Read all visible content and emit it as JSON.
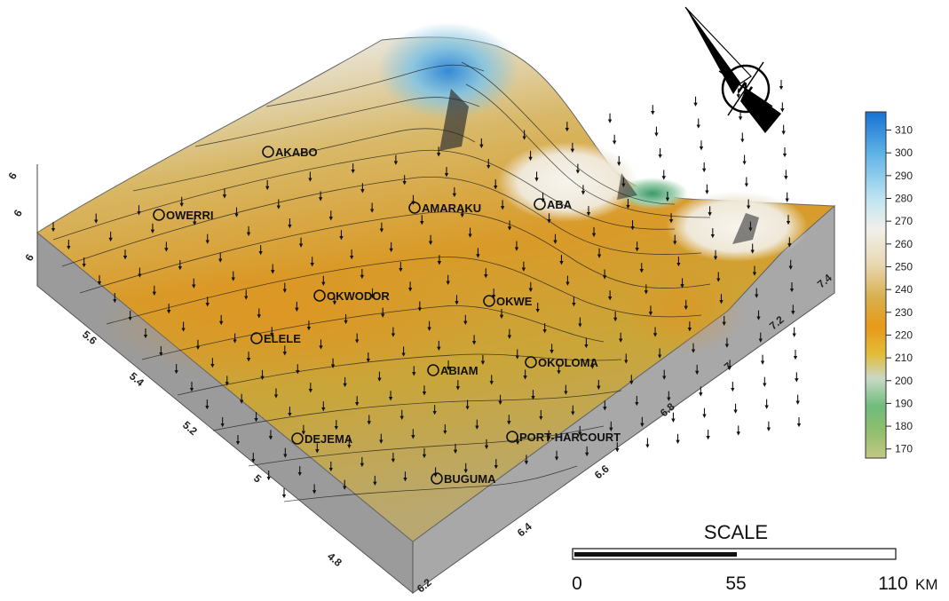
{
  "map": {
    "towns": [
      {
        "name": "AKABO"
      },
      {
        "name": "OWERRI"
      },
      {
        "name": "AMARAKU"
      },
      {
        "name": "ABA"
      },
      {
        "name": "OKWODOR"
      },
      {
        "name": "OKWE"
      },
      {
        "name": "ELELE"
      },
      {
        "name": "ABIAM"
      },
      {
        "name": "OKOLOMA"
      },
      {
        "name": "DEJEMA"
      },
      {
        "name": "PORT-HARCOURT"
      },
      {
        "name": "BUGUMA"
      }
    ],
    "left_axis_ticks": [
      "4.8",
      "5",
      "5.2",
      "5.4",
      "5.6"
    ],
    "right_axis_ticks": [
      "6.2",
      "6.4",
      "6.6",
      "6.8",
      "7",
      "7.2",
      "7.4"
    ],
    "back_axis_ticks": [
      "6",
      "6",
      "6"
    ]
  },
  "colorbar": {
    "ticks": [
      "310",
      "300",
      "290",
      "280",
      "270",
      "260",
      "250",
      "240",
      "230",
      "220",
      "210",
      "200",
      "190",
      "180",
      "170"
    ],
    "min": 166,
    "max": 318,
    "colors": {
      "high": "#1a78d4",
      "mid_light": "#f3ead6",
      "mid": "#d9a227",
      "orange": "#e89a18",
      "low_green": "#4fa86a",
      "lowest": "#b7c47a"
    }
  },
  "scale": {
    "title": "SCALE",
    "labels": [
      "0",
      "55",
      "110"
    ],
    "unit": "KM"
  },
  "north_arrow": {
    "label": "N"
  }
}
